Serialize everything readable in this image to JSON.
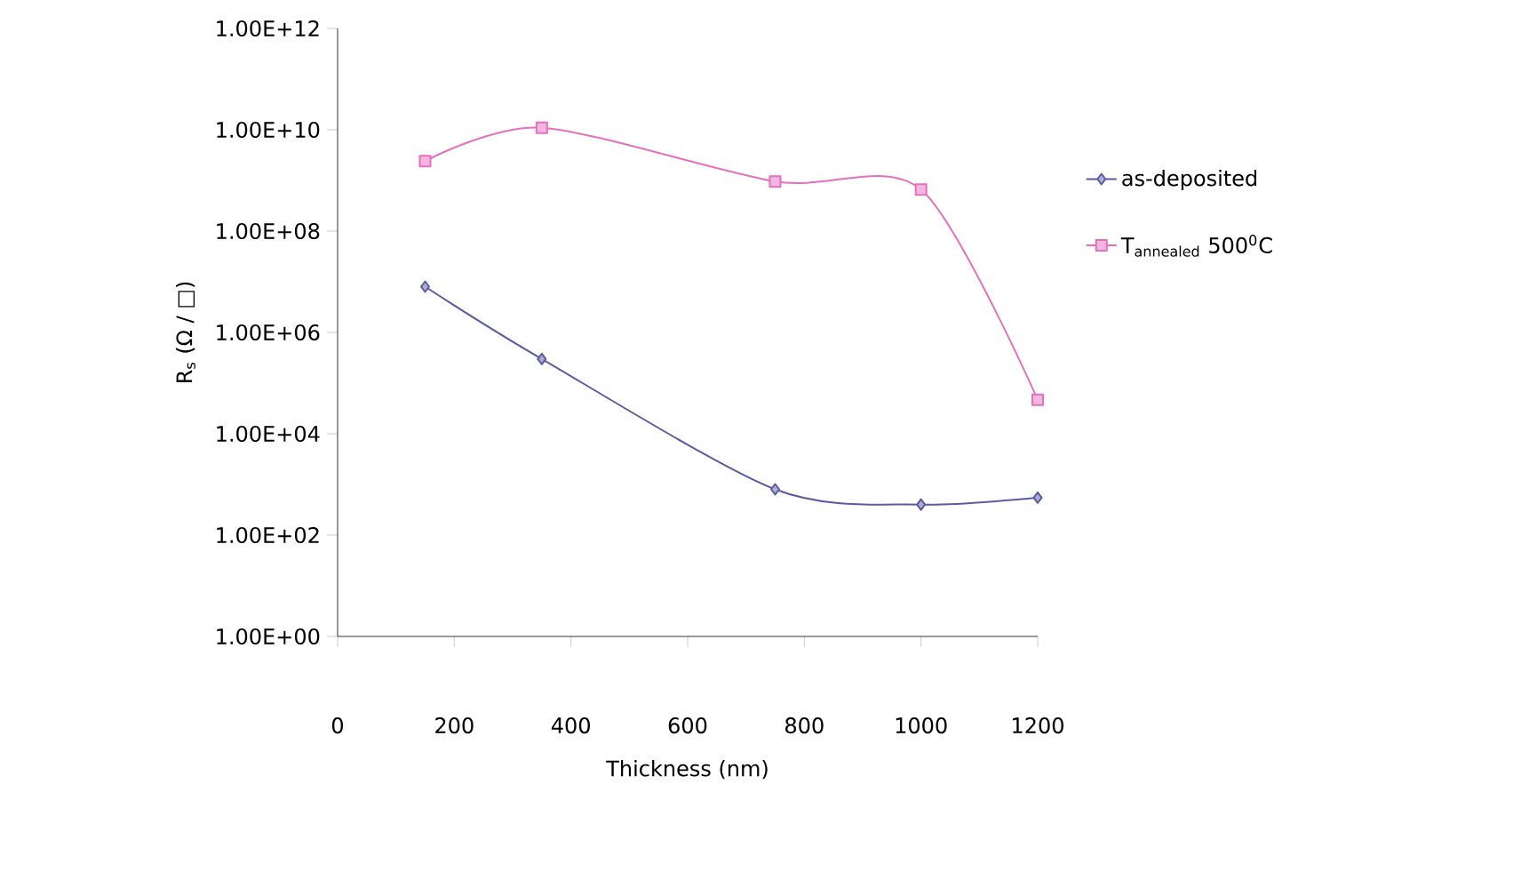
{
  "chart_data": {
    "type": "line",
    "xlabel": "Thickness (nm)",
    "ylabel": "R$_{s}$ (Ω / □)",
    "log": "y",
    "grid": false,
    "legend": "right",
    "x": [
      150,
      350,
      750,
      1000,
      1200
    ],
    "xlim": [
      0,
      1200
    ],
    "xticks": [
      0,
      200,
      400,
      600,
      800,
      1000,
      1200
    ],
    "ylim": [
      1,
      1000000000000
    ],
    "yticks": [
      {
        "value": 1,
        "label": "1.00E+00"
      },
      {
        "value": 100,
        "label": "1.00E+02"
      },
      {
        "value": 10000,
        "label": "1.00E+04"
      },
      {
        "value": 1000000,
        "label": "1.00E+06"
      },
      {
        "value": 100000000,
        "label": "1.00E+08"
      },
      {
        "value": 10000000000,
        "label": "1.00E+10"
      },
      {
        "value": 1000000000000,
        "label": "1.00E+12"
      }
    ],
    "series": [
      {
        "name": "as-deposited",
        "color": "#5b5ba3",
        "marker": "diamond",
        "values": [
          8000000,
          300000,
          800,
          400,
          550
        ]
      },
      {
        "name": "T$_{annealed}$ 500$^{0}$C",
        "color": "#e76fc0",
        "marker": "square",
        "values": [
          2400000000,
          11000000000,
          950000000,
          660000000,
          47000
        ]
      }
    ]
  }
}
